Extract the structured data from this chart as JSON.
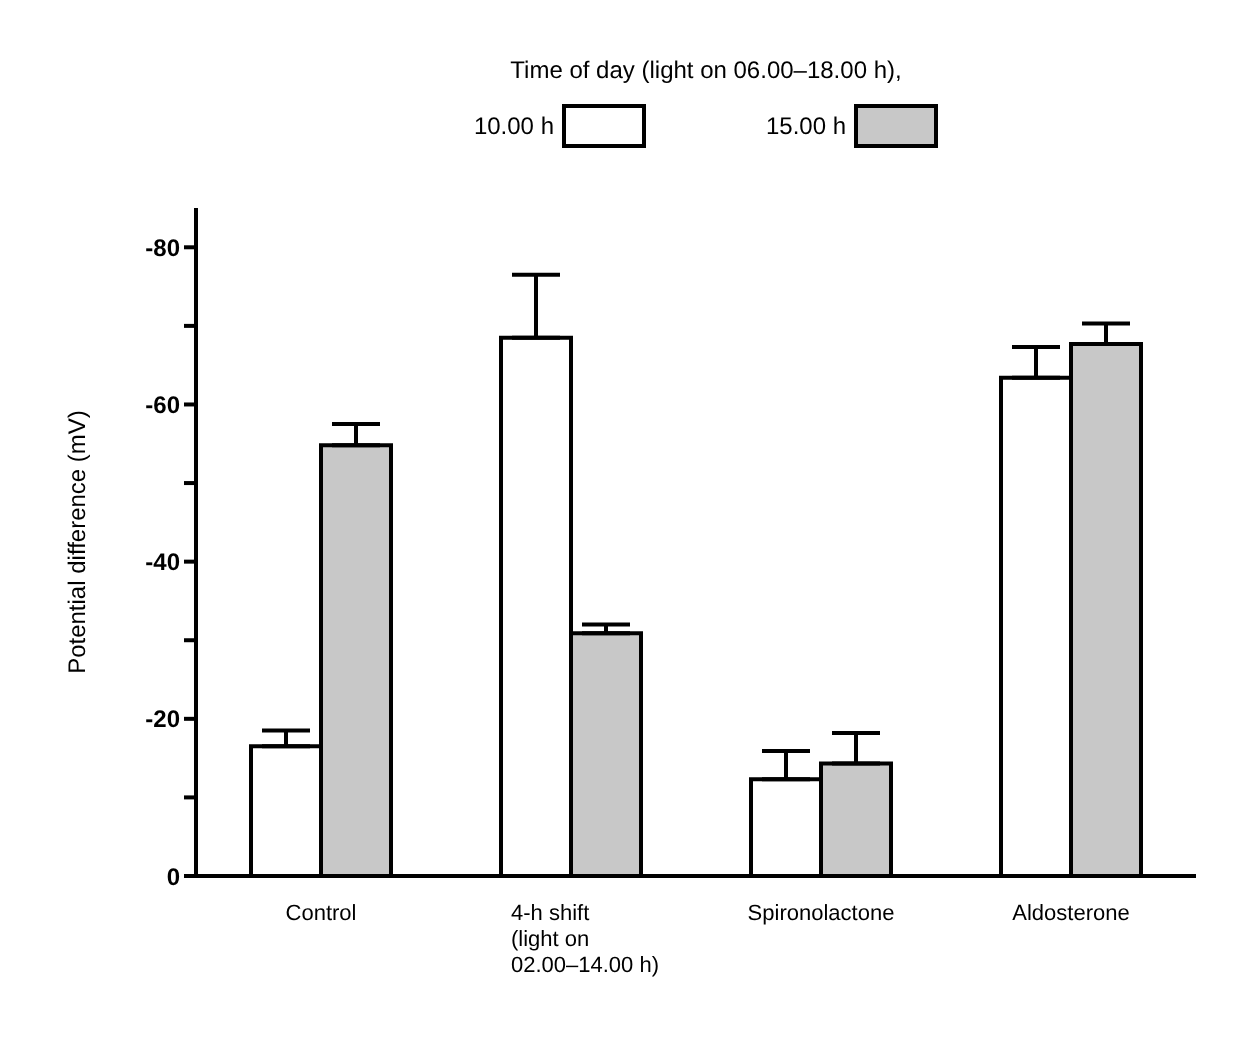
{
  "chart_data": {
    "type": "bar",
    "legend_title": "Time of day (light on 06.00–18.00 h),",
    "ylabel": "Potential difference (mV)",
    "categories": [
      "Control",
      "4-h shift\n(light on\n02.00–14.00 h)",
      "Spironolactone",
      "Aldosterone"
    ],
    "series": [
      {
        "name": "10.00 h",
        "color": "#ffffff",
        "values": [
          -16.5,
          -68.5,
          -12.3,
          -63.4
        ],
        "errors": [
          [
            -18.5,
            -16.5
          ],
          [
            -76.5,
            -68.5
          ],
          [
            -15.9,
            -12.3
          ],
          [
            -67.3,
            -63.4
          ]
        ]
      },
      {
        "name": "15.00 h",
        "color": "#c8c8c8",
        "values": [
          -54.8,
          -30.9,
          -14.3,
          -67.7
        ],
        "errors": [
          [
            -57.5,
            -54.8
          ],
          [
            -32,
            -30.9
          ],
          [
            -18.2,
            -14.3
          ],
          [
            -70.3,
            -67.7
          ]
        ]
      }
    ],
    "ylim": [
      0,
      -85
    ],
    "yticks": [
      0,
      {
        "value": -10,
        "label": null
      },
      -20,
      {
        "value": -30,
        "label": null
      },
      -40,
      {
        "value": -50,
        "label": null
      },
      -60,
      {
        "value": -70,
        "label": null
      },
      -80
    ],
    "legend": "top",
    "grid": false
  }
}
